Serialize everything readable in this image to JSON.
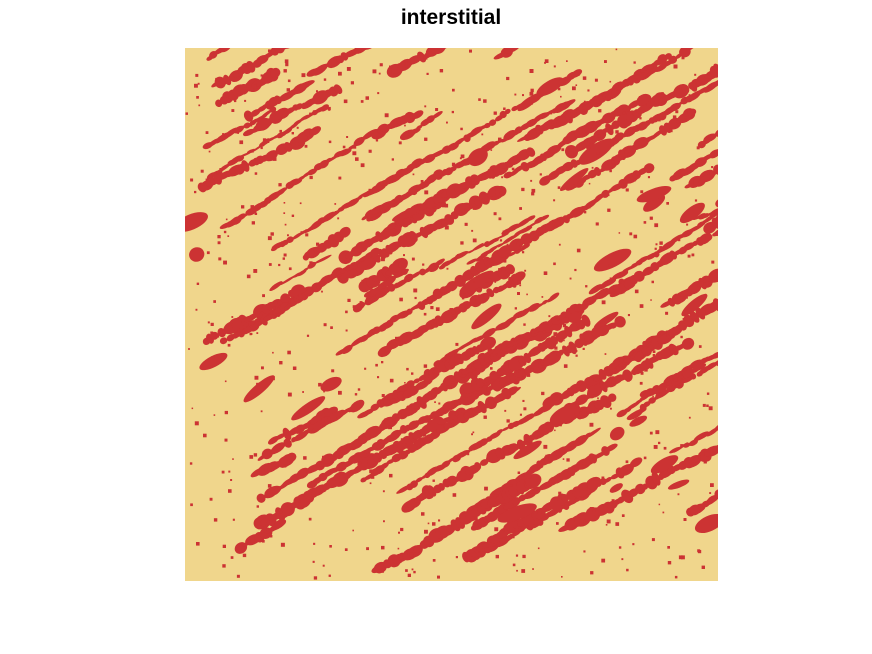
{
  "chart_data": {
    "type": "heatmap",
    "title": "interstitial",
    "grid": false,
    "legend": "none",
    "colors": {
      "background": "#F0D68C",
      "foreground": "#CC3333"
    }
  }
}
